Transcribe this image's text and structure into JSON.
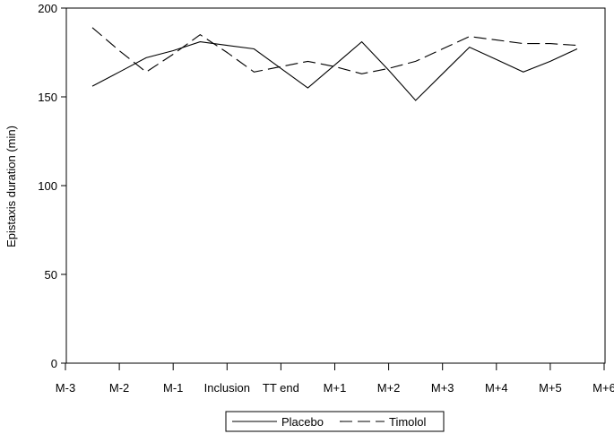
{
  "chart_data": {
    "type": "line",
    "title": "",
    "xlabel": "",
    "ylabel": "Epistaxis duration (min)",
    "categories": [
      "M-3",
      "M-2",
      "M-1",
      "Inclusion",
      "TT end",
      "M+1",
      "M+2",
      "M+3",
      "M+4",
      "M+5",
      "M+6"
    ],
    "x": [
      0.5,
      1,
      1.5,
      2,
      2.5,
      3,
      3.5,
      4,
      4.5,
      5,
      5.5,
      6,
      6.5,
      7,
      7.5,
      8,
      8.5,
      9,
      9.5
    ],
    "xlim": [
      0,
      10
    ],
    "ylim": [
      0,
      200
    ],
    "yticks": [
      0,
      50,
      100,
      150,
      200
    ],
    "grid": false,
    "legend_position": "bottom-center",
    "series": [
      {
        "name": "Placebo",
        "style": "solid",
        "color": "#000000",
        "values": [
          156,
          164,
          172,
          176,
          181,
          179,
          177,
          166,
          155,
          168,
          181,
          165,
          148,
          163,
          178,
          171,
          164,
          170,
          177
        ]
      },
      {
        "name": "Timolol",
        "style": "dashed",
        "color": "#000000",
        "values": [
          189,
          176,
          164,
          174,
          185,
          175,
          164,
          167,
          170,
          167,
          163,
          166,
          170,
          177,
          184,
          182,
          180,
          180,
          179
        ]
      }
    ]
  }
}
